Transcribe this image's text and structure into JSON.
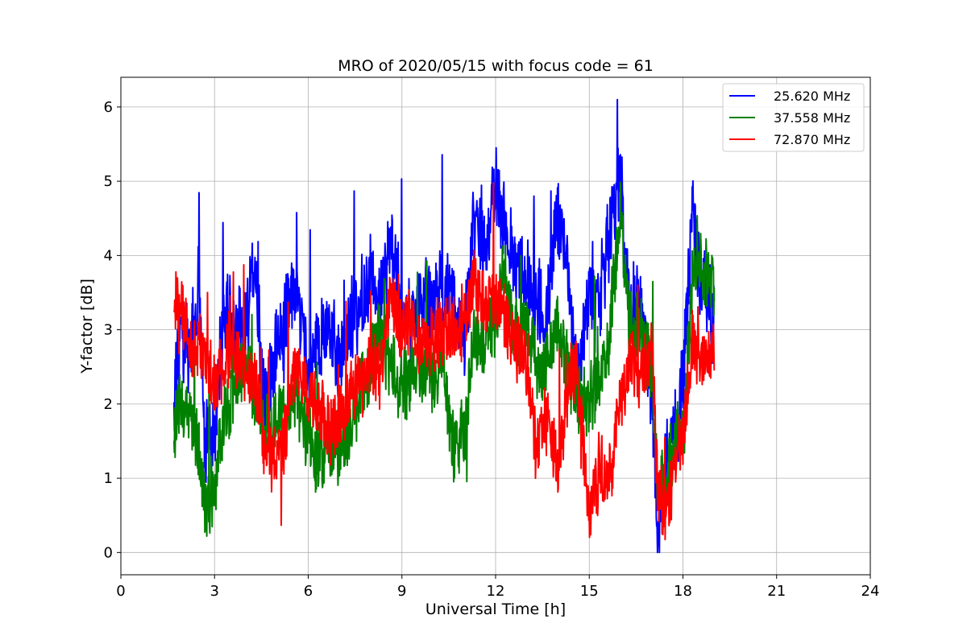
{
  "chart_data": {
    "type": "line",
    "title": "MRO of 2020/05/15 with focus code = 61",
    "xlabel": "Universal Time [h]",
    "ylabel": "Y-factor [dB]",
    "xlim": [
      0,
      24
    ],
    "ylim": [
      -0.3,
      6.4
    ],
    "xticks": [
      0,
      3,
      6,
      9,
      12,
      15,
      18,
      21,
      24
    ],
    "yticks": [
      0,
      1,
      2,
      3,
      4,
      5,
      6
    ],
    "grid": true,
    "legend_position": "top-right",
    "series": [
      {
        "name": "25.620 MHz",
        "color": "#0000ff",
        "x": [
          1.7,
          1.9,
          2.2,
          2.5,
          2.7,
          3.0,
          3.3,
          3.6,
          4.0,
          4.3,
          4.6,
          5.0,
          5.3,
          5.6,
          6.0,
          6.4,
          6.7,
          7.0,
          7.3,
          7.6,
          8.0,
          8.3,
          8.6,
          9.0,
          9.3,
          9.6,
          10.0,
          10.3,
          10.6,
          11.0,
          11.3,
          11.6,
          12.0,
          12.3,
          12.6,
          13.0,
          13.3,
          13.6,
          14.0,
          14.3,
          14.6,
          15.0,
          15.3,
          15.6,
          16.0,
          16.3,
          16.6,
          17.0,
          17.2,
          17.5,
          17.8,
          18.0,
          18.3,
          18.6,
          19.0
        ],
        "y": [
          2.2,
          2.8,
          2.7,
          3.6,
          1.5,
          1.6,
          3.3,
          3.0,
          3.0,
          3.8,
          2.0,
          2.8,
          3.2,
          3.6,
          2.4,
          2.8,
          3.0,
          2.6,
          3.0,
          3.3,
          3.7,
          3.4,
          4.2,
          3.5,
          3.0,
          3.4,
          3.3,
          3.5,
          3.4,
          2.8,
          4.5,
          4.0,
          5.0,
          4.4,
          4.0,
          3.6,
          3.5,
          3.1,
          4.6,
          3.8,
          2.3,
          3.5,
          3.3,
          4.2,
          5.0,
          3.2,
          3.5,
          2.1,
          0.2,
          1.4,
          1.6,
          2.4,
          4.5,
          3.6,
          3.1
        ]
      },
      {
        "name": "37.558 MHz",
        "color": "#008000",
        "x": [
          1.7,
          1.9,
          2.2,
          2.5,
          2.7,
          3.0,
          3.3,
          3.6,
          4.0,
          4.3,
          4.6,
          5.0,
          5.3,
          5.6,
          6.0,
          6.4,
          6.7,
          7.0,
          7.3,
          7.6,
          8.0,
          8.3,
          8.6,
          9.0,
          9.3,
          9.6,
          10.0,
          10.3,
          10.6,
          11.0,
          11.3,
          11.6,
          12.0,
          12.3,
          12.6,
          13.0,
          13.3,
          13.6,
          14.0,
          14.3,
          14.6,
          15.0,
          15.3,
          15.6,
          16.0,
          16.3,
          16.6,
          17.0,
          17.2,
          17.5,
          17.8,
          18.0,
          18.3,
          18.6,
          19.0
        ],
        "y": [
          1.6,
          2.1,
          1.8,
          1.4,
          0.6,
          0.9,
          1.8,
          2.2,
          2.6,
          2.2,
          1.6,
          1.8,
          1.9,
          2.2,
          1.5,
          1.2,
          1.5,
          1.4,
          1.6,
          2.0,
          2.6,
          2.9,
          2.6,
          2.2,
          2.4,
          2.5,
          2.4,
          2.6,
          1.4,
          1.6,
          2.9,
          2.8,
          3.1,
          3.8,
          2.9,
          2.9,
          2.6,
          2.5,
          3.1,
          2.6,
          2.0,
          2.1,
          2.3,
          2.8,
          4.5,
          3.0,
          3.0,
          2.5,
          0.8,
          1.0,
          1.6,
          1.4,
          3.7,
          3.9,
          3.6
        ]
      },
      {
        "name": "72.870 MHz",
        "color": "#ff0000",
        "x": [
          1.7,
          1.9,
          2.2,
          2.5,
          2.7,
          3.0,
          3.3,
          3.6,
          4.0,
          4.3,
          4.6,
          5.0,
          5.3,
          5.6,
          6.0,
          6.4,
          6.7,
          7.0,
          7.3,
          7.6,
          8.0,
          8.3,
          8.6,
          9.0,
          9.3,
          9.6,
          10.0,
          10.3,
          10.6,
          11.0,
          11.3,
          11.6,
          12.0,
          12.3,
          12.6,
          13.0,
          13.3,
          13.6,
          14.0,
          14.3,
          14.6,
          15.0,
          15.3,
          15.6,
          16.0,
          16.3,
          16.6,
          17.0,
          17.2,
          17.5,
          17.8,
          18.0,
          18.3,
          18.6,
          19.0
        ],
        "y": [
          3.3,
          3.4,
          2.8,
          2.8,
          2.5,
          2.3,
          2.5,
          2.8,
          2.3,
          2.4,
          1.4,
          1.2,
          1.6,
          2.6,
          2.1,
          2.0,
          1.6,
          1.8,
          2.1,
          2.2,
          2.5,
          2.4,
          3.4,
          2.9,
          3.1,
          2.8,
          2.9,
          3.0,
          3.0,
          3.0,
          3.7,
          3.3,
          3.4,
          3.1,
          2.8,
          2.6,
          1.4,
          1.8,
          1.1,
          2.2,
          2.6,
          0.4,
          1.2,
          0.9,
          2.0,
          2.6,
          2.4,
          2.7,
          0.8,
          0.6,
          1.3,
          1.5,
          2.8,
          2.6,
          2.8
        ]
      }
    ]
  }
}
